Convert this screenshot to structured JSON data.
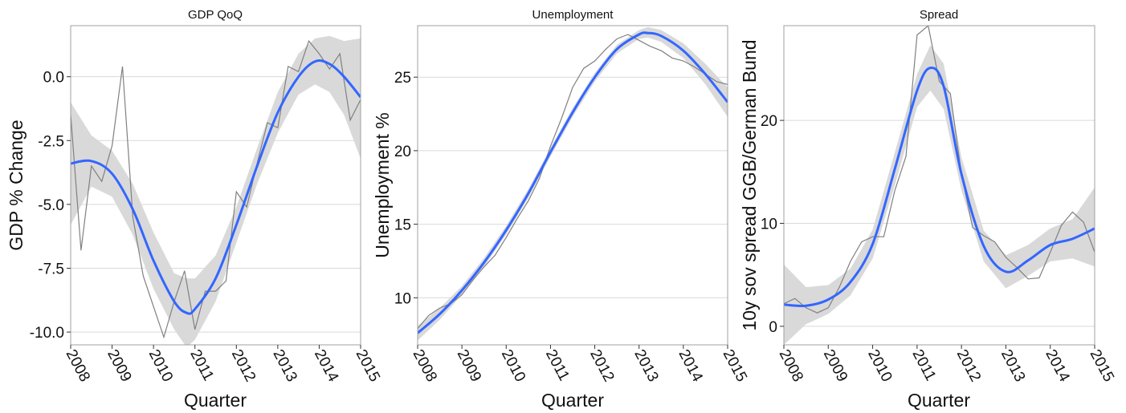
{
  "figure": {
    "colors": {
      "band": "#d9d9d9",
      "smooth": "#3366ff",
      "raw": "#808080",
      "grid": "#d9d9d9",
      "frame": "#a0a0a0"
    }
  },
  "chart_data": [
    {
      "type": "line",
      "title": "GDP QoQ",
      "xlabel": "Quarter",
      "ylabel": "GDP % Change",
      "xlim": [
        2008,
        2015
      ],
      "ylim": [
        -10.5,
        2.0
      ],
      "x_ticks": [
        2008,
        2009,
        2010,
        2011,
        2012,
        2013,
        2014,
        2015
      ],
      "y_ticks": [
        -10.0,
        -7.5,
        -5.0,
        -2.5,
        0.0
      ],
      "y_tick_labels": [
        "-10.0",
        "-7.5",
        "-5.0",
        "-2.5",
        "0.0"
      ],
      "grid": true,
      "series": [
        {
          "role": "raw",
          "x": [
            2008.0,
            2008.25,
            2008.5,
            2008.75,
            2009.0,
            2009.25,
            2009.5,
            2009.75,
            2010.0,
            2010.25,
            2010.5,
            2010.75,
            2011.0,
            2011.25,
            2011.5,
            2011.75,
            2012.0,
            2012.25,
            2012.5,
            2012.75,
            2013.0,
            2013.25,
            2013.5,
            2013.75,
            2014.0,
            2014.25,
            2014.5,
            2014.75,
            2015.0
          ],
          "y": [
            -1.5,
            -6.8,
            -3.5,
            -4.1,
            -2.7,
            0.4,
            -5.5,
            -7.8,
            -9.0,
            -10.2,
            -8.8,
            -7.6,
            -9.9,
            -8.4,
            -8.4,
            -8.0,
            -4.5,
            -5.1,
            -3.4,
            -1.8,
            -2.0,
            0.4,
            0.2,
            1.4,
            0.9,
            0.3,
            0.9,
            -1.7,
            -0.9
          ]
        },
        {
          "role": "smooth",
          "x": [
            2008.0,
            2008.5,
            2009.0,
            2009.5,
            2010.0,
            2010.5,
            2010.8,
            2011.0,
            2011.5,
            2012.0,
            2012.5,
            2013.0,
            2013.5,
            2013.9,
            2014.25,
            2014.6,
            2015.0
          ],
          "y": [
            -3.4,
            -3.3,
            -3.8,
            -5.2,
            -7.2,
            -8.8,
            -9.25,
            -9.1,
            -7.9,
            -5.8,
            -3.5,
            -1.4,
            0.0,
            0.6,
            0.5,
            0.0,
            -0.8
          ],
          "lower": [
            -5.8,
            -4.3,
            -4.7,
            -6.2,
            -8.3,
            -9.9,
            -10.6,
            -10.3,
            -8.8,
            -6.5,
            -4.2,
            -2.2,
            -0.7,
            -0.3,
            -0.6,
            -1.5,
            -3.2
          ],
          "upper": [
            -1.0,
            -2.3,
            -2.9,
            -4.2,
            -6.1,
            -7.7,
            -7.9,
            -7.9,
            -7.0,
            -5.1,
            -2.8,
            -0.6,
            0.9,
            1.5,
            1.6,
            1.4,
            1.5
          ]
        }
      ]
    },
    {
      "type": "line",
      "title": "Unemployment",
      "xlabel": "Quarter",
      "ylabel": "Unemployment %",
      "xlim": [
        2008,
        2015
      ],
      "ylim": [
        6.8,
        28.5
      ],
      "x_ticks": [
        2008,
        2009,
        2010,
        2011,
        2012,
        2013,
        2014,
        2015
      ],
      "y_ticks": [
        10,
        15,
        20,
        25
      ],
      "y_tick_labels": [
        "10",
        "15",
        "20",
        "25"
      ],
      "grid": true,
      "series": [
        {
          "role": "raw",
          "x": [
            2008.0,
            2008.25,
            2008.5,
            2008.75,
            2009.0,
            2009.25,
            2009.5,
            2009.75,
            2010.0,
            2010.25,
            2010.5,
            2010.75,
            2011.0,
            2011.25,
            2011.5,
            2011.75,
            2012.0,
            2012.25,
            2012.5,
            2012.75,
            2013.0,
            2013.25,
            2013.5,
            2013.75,
            2014.0,
            2014.25,
            2014.5,
            2014.75,
            2015.0
          ],
          "y": [
            7.9,
            8.8,
            9.3,
            9.6,
            10.2,
            11.2,
            12.1,
            12.9,
            14.1,
            15.4,
            16.6,
            18.1,
            20.3,
            22.2,
            24.3,
            25.6,
            26.1,
            26.9,
            27.6,
            27.9,
            27.5,
            27.1,
            26.8,
            26.3,
            26.1,
            25.7,
            25.2,
            24.7,
            24.5
          ]
        },
        {
          "role": "smooth",
          "x": [
            2008.0,
            2008.5,
            2009.0,
            2009.5,
            2010.0,
            2010.5,
            2011.0,
            2011.5,
            2012.0,
            2012.5,
            2013.0,
            2013.2,
            2013.5,
            2014.0,
            2014.5,
            2015.0
          ],
          "y": [
            7.6,
            8.9,
            10.5,
            12.4,
            14.6,
            17.1,
            19.9,
            22.6,
            25.0,
            26.9,
            27.9,
            28.0,
            27.8,
            26.8,
            25.2,
            23.3
          ],
          "lower": [
            7.1,
            8.5,
            10.2,
            12.1,
            14.3,
            16.8,
            19.6,
            22.3,
            24.7,
            26.6,
            27.6,
            27.7,
            27.4,
            26.3,
            24.5,
            22.3
          ],
          "upper": [
            8.1,
            9.3,
            10.8,
            12.7,
            14.9,
            17.4,
            20.2,
            22.9,
            25.3,
            27.2,
            28.2,
            28.4,
            28.2,
            27.3,
            25.9,
            24.3
          ]
        }
      ]
    },
    {
      "type": "line",
      "title": "Spread",
      "xlabel": "Quarter",
      "ylabel": "10y sov spread GGB/German Bund",
      "xlim": [
        2008,
        2015
      ],
      "ylim": [
        -1.8,
        29.2
      ],
      "x_ticks": [
        2008,
        2009,
        2010,
        2011,
        2012,
        2013,
        2014,
        2015
      ],
      "y_ticks": [
        0,
        10,
        20
      ],
      "y_tick_labels": [
        "0",
        "10",
        "20"
      ],
      "grid": true,
      "series": [
        {
          "role": "raw",
          "x": [
            2008.0,
            2008.25,
            2008.5,
            2008.75,
            2009.0,
            2009.25,
            2009.5,
            2009.75,
            2010.0,
            2010.25,
            2010.5,
            2010.75,
            2011.0,
            2011.25,
            2011.5,
            2011.75,
            2012.0,
            2012.25,
            2012.5,
            2012.75,
            2013.0,
            2013.25,
            2013.5,
            2013.75,
            2014.0,
            2014.25,
            2014.5,
            2014.75,
            2015.0
          ],
          "y": [
            2.2,
            2.7,
            1.8,
            1.3,
            1.8,
            3.8,
            6.3,
            8.2,
            8.7,
            8.7,
            13.2,
            16.5,
            28.3,
            29.2,
            23.8,
            22.6,
            14.8,
            9.6,
            8.8,
            8.2,
            6.7,
            5.7,
            4.6,
            4.7,
            7.2,
            9.8,
            11.1,
            10.1,
            7.2
          ]
        },
        {
          "role": "smooth",
          "x": [
            2008.0,
            2008.5,
            2009.0,
            2009.5,
            2010.0,
            2010.5,
            2011.0,
            2011.3,
            2011.6,
            2012.0,
            2012.5,
            2013.0,
            2013.5,
            2014.0,
            2014.5,
            2015.0
          ],
          "y": [
            2.1,
            2.0,
            2.6,
            4.3,
            8.0,
            15.3,
            22.9,
            25.1,
            23.3,
            14.8,
            7.8,
            5.3,
            6.4,
            7.9,
            8.5,
            9.5
          ],
          "lower": [
            -1.8,
            0.2,
            1.2,
            3.0,
            6.6,
            13.7,
            21.3,
            22.9,
            21.1,
            13.2,
            6.3,
            3.7,
            4.9,
            6.3,
            6.6,
            5.8
          ],
          "upper": [
            6.0,
            3.8,
            4.0,
            5.6,
            9.4,
            16.9,
            24.5,
            27.3,
            25.5,
            16.4,
            9.3,
            6.9,
            7.9,
            9.5,
            10.4,
            13.5
          ]
        }
      ]
    }
  ]
}
